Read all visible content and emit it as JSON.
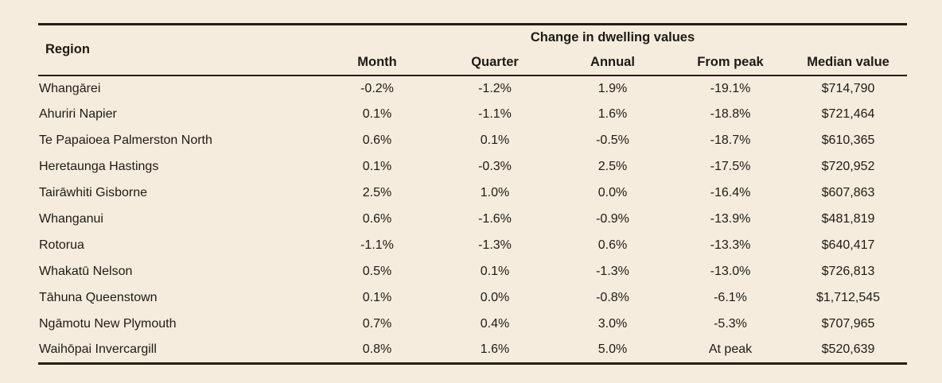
{
  "chart_data": {
    "type": "table",
    "title": "Change in dwelling values",
    "columns": [
      "Region",
      "Month",
      "Quarter",
      "Annual",
      "From peak",
      "Median value"
    ],
    "rows": [
      [
        "Whangārei",
        "-0.2%",
        "-1.2%",
        "1.9%",
        "-19.1%",
        "$714,790"
      ],
      [
        "Ahuriri Napier",
        "0.1%",
        "-1.1%",
        "1.6%",
        "-18.8%",
        "$721,464"
      ],
      [
        "Te Papaioea Palmerston North",
        "0.6%",
        "0.1%",
        "-0.5%",
        "-18.7%",
        "$610,365"
      ],
      [
        "Heretaunga Hastings",
        "0.1%",
        "-0.3%",
        "2.5%",
        "-17.5%",
        "$720,952"
      ],
      [
        "Tairāwhiti Gisborne",
        "2.5%",
        "1.0%",
        "0.0%",
        "-16.4%",
        "$607,863"
      ],
      [
        "Whanganui",
        "0.6%",
        "-1.6%",
        "-0.9%",
        "-13.9%",
        "$481,819"
      ],
      [
        "Rotorua",
        "-1.1%",
        "-1.3%",
        "0.6%",
        "-13.3%",
        "$640,417"
      ],
      [
        "Whakatū Nelson",
        "0.5%",
        "0.1%",
        "-1.3%",
        "-13.0%",
        "$726,813"
      ],
      [
        "Tāhuna Queenstown",
        "0.1%",
        "0.0%",
        "-0.8%",
        "-6.1%",
        "$1,712,545"
      ],
      [
        "Ngāmotu New Plymouth",
        "0.7%",
        "0.4%",
        "3.0%",
        "-5.3%",
        "$707,965"
      ],
      [
        "Waihōpai Invercargill",
        "0.8%",
        "1.6%",
        "5.0%",
        "At peak",
        "$520,639"
      ]
    ],
    "layout": {
      "group_header_spans_columns": [
        "Month",
        "Quarter",
        "Annual",
        "From peak",
        "Median value"
      ],
      "grid": "horizontal rules only: top, below header, bottom"
    }
  },
  "colors": {
    "background": "#f5ecdd",
    "text": "#1d1b16",
    "rule": "#241d14"
  }
}
